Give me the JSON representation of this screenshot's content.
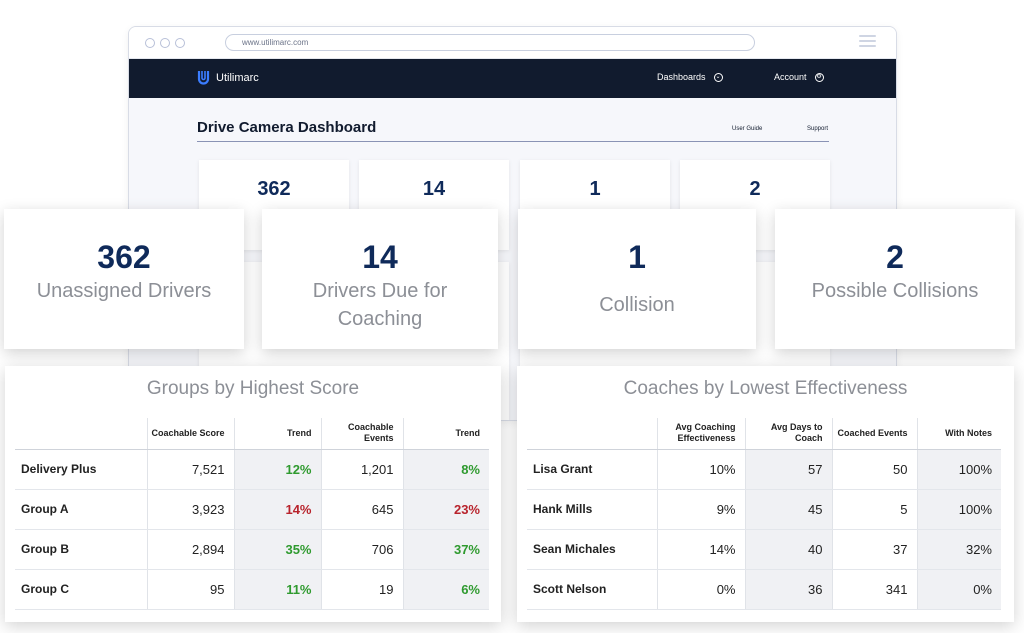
{
  "browser": {
    "url": "www.utilimarc.com",
    "logo_text": "Utilimarc",
    "nav_dashboards": "Dashboards",
    "nav_account": "Account",
    "title": "Drive Camera Dashboard",
    "link_user_guide": "User Guide",
    "link_support": "Support"
  },
  "bg_cards": [
    {
      "value": "362"
    },
    {
      "value": "14"
    },
    {
      "value": "1"
    },
    {
      "value": "2"
    }
  ],
  "cards": [
    {
      "value": "362",
      "label": "Unassigned Drivers"
    },
    {
      "value": "14",
      "label": "Drivers Due for Coaching"
    },
    {
      "value": "1",
      "label": "Collision"
    },
    {
      "value": "2",
      "label": "Possible Collisions"
    }
  ],
  "groups": {
    "title": "Groups by Highest Score",
    "headers": [
      "",
      "Coachable Score",
      "Trend",
      "Coachable Events",
      "Trend"
    ],
    "rows": [
      {
        "name": "Delivery Plus",
        "score": "7,521",
        "trend1": "12%",
        "events": "1,201",
        "trend2": "8%"
      },
      {
        "name": "Group A",
        "score": "3,923",
        "trend1": "14%",
        "events": "645",
        "trend2": "23%"
      },
      {
        "name": "Group B",
        "score": "2,894",
        "trend1": "35%",
        "events": "706",
        "trend2": "37%"
      },
      {
        "name": "Group C",
        "score": "95",
        "trend1": "11%",
        "events": "19",
        "trend2": "6%"
      }
    ]
  },
  "coaches": {
    "title": "Coaches by Lowest Effectiveness",
    "headers": [
      "",
      "Avg Coaching Effectiveness",
      "Avg Days to Coach",
      "Coached Events",
      "With Notes"
    ],
    "rows": [
      {
        "name": "Lisa Grant",
        "eff": "10%",
        "days": "57",
        "events": "50",
        "notes": "100%"
      },
      {
        "name": "Hank Mills",
        "eff": "9%",
        "days": "45",
        "events": "5",
        "notes": "100%"
      },
      {
        "name": "Sean Michales",
        "eff": "14%",
        "days": "40",
        "events": "37",
        "notes": "32%"
      },
      {
        "name": "Scott Nelson",
        "eff": "0%",
        "days": "36",
        "events": "341",
        "notes": "0%"
      }
    ]
  },
  "colors": {
    "navy": "#111b2e",
    "number": "#0f2a5a",
    "trend_up": "#2f9a2f",
    "trend_down": "#b8232c"
  }
}
